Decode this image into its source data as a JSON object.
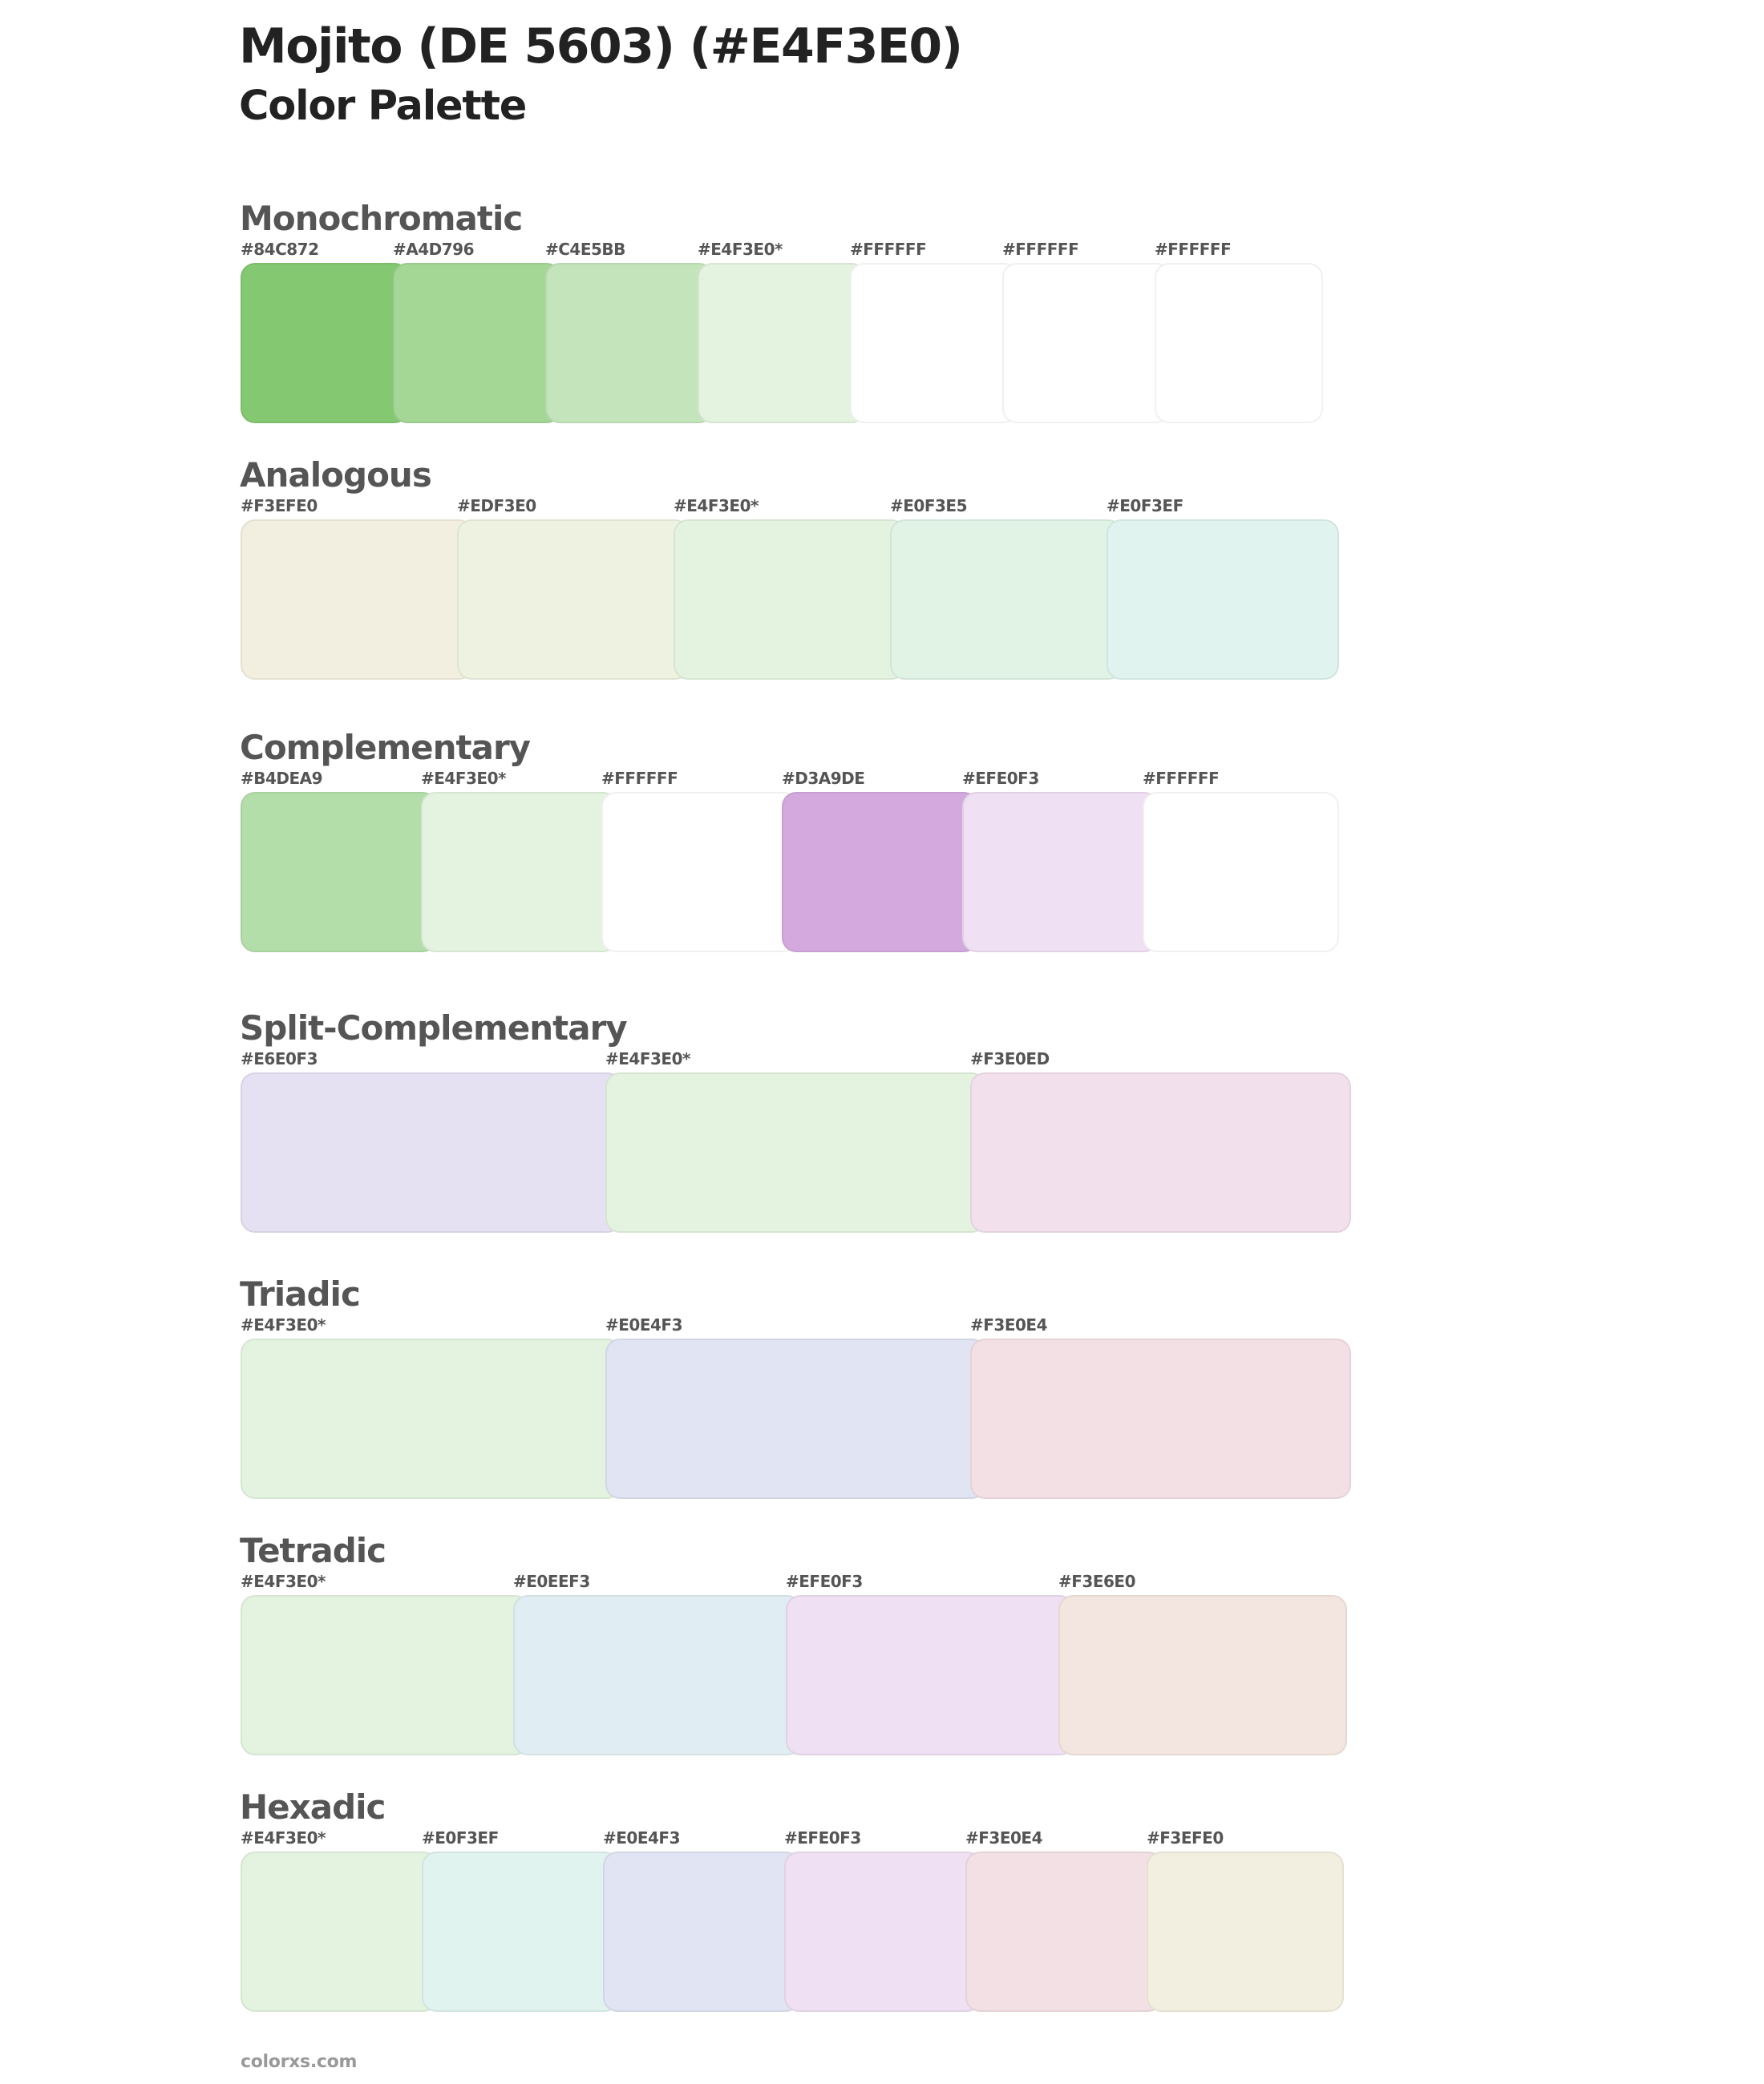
{
  "header": {
    "title": "Mojito (DE 5603) (#E4F3E0)",
    "subtitle": "Color Palette"
  },
  "base_color": "#E4F3E0",
  "sections": [
    {
      "id": "monochromatic",
      "title": "Monochromatic",
      "step": 190,
      "swatches": [
        {
          "label": "#84C872",
          "color": "#84C872"
        },
        {
          "label": "#A4D796",
          "color": "#A4D796"
        },
        {
          "label": "#C4E5BB",
          "color": "#C4E5BB"
        },
        {
          "label": "#E4F3E0*",
          "color": "#E4F3E0"
        },
        {
          "label": "#FFFFFF",
          "color": "#FFFFFF"
        },
        {
          "label": "#FFFFFF",
          "color": "#FFFFFF"
        },
        {
          "label": "#FFFFFF",
          "color": "#FFFFFF"
        }
      ]
    },
    {
      "id": "analogous",
      "title": "Analogous",
      "step": 270,
      "swatches": [
        {
          "label": "#F3EFE0",
          "color": "#F3EFE0"
        },
        {
          "label": "#EDF3E0",
          "color": "#EDF3E0"
        },
        {
          "label": "#E4F3E0*",
          "color": "#E4F3E0"
        },
        {
          "label": "#E0F3E5",
          "color": "#E0F3E5"
        },
        {
          "label": "#E0F3EF",
          "color": "#E0F3EF"
        }
      ]
    },
    {
      "id": "complementary",
      "title": "Complementary",
      "step": 225,
      "swatches": [
        {
          "label": "#B4DEA9",
          "color": "#B4DEA9"
        },
        {
          "label": "#E4F3E0*",
          "color": "#E4F3E0"
        },
        {
          "label": "#FFFFFF",
          "color": "#FFFFFF"
        },
        {
          "label": "#D3A9DE",
          "color": "#D3A9DE"
        },
        {
          "label": "#EFE0F3",
          "color": "#EFE0F3"
        },
        {
          "label": "#FFFFFF",
          "color": "#FFFFFF"
        }
      ]
    },
    {
      "id": "split-complementary",
      "title": "Split-Complementary",
      "step": 455,
      "swatches": [
        {
          "label": "#E6E0F3",
          "color": "#E6E0F3"
        },
        {
          "label": "#E4F3E0*",
          "color": "#E4F3E0"
        },
        {
          "label": "#F3E0ED",
          "color": "#F3E0ED"
        }
      ]
    },
    {
      "id": "triadic",
      "title": "Triadic",
      "step": 455,
      "swatches": [
        {
          "label": "#E4F3E0*",
          "color": "#E4F3E0"
        },
        {
          "label": "#E0E4F3",
          "color": "#E0E4F3"
        },
        {
          "label": "#F3E0E4",
          "color": "#F3E0E4"
        }
      ]
    },
    {
      "id": "tetradic",
      "title": "Tetradic",
      "step": 340,
      "swatches": [
        {
          "label": "#E4F3E0*",
          "color": "#E4F3E0"
        },
        {
          "label": "#E0EEF3",
          "color": "#E0EEF3"
        },
        {
          "label": "#EFE0F3",
          "color": "#EFE0F3"
        },
        {
          "label": "#F3E6E0",
          "color": "#F3E6E0"
        }
      ]
    },
    {
      "id": "hexadic",
      "title": "Hexadic",
      "step": 226,
      "swatches": [
        {
          "label": "#E4F3E0*",
          "color": "#E4F3E0"
        },
        {
          "label": "#E0F3EF",
          "color": "#E0F3EF"
        },
        {
          "label": "#E0E4F3",
          "color": "#E0E4F3"
        },
        {
          "label": "#EFE0F3",
          "color": "#EFE0F3"
        },
        {
          "label": "#F3E0E4",
          "color": "#F3E0E4"
        },
        {
          "label": "#F3EFE0",
          "color": "#F3EFE0"
        }
      ]
    }
  ],
  "footer": {
    "text": "colorxs.com"
  }
}
